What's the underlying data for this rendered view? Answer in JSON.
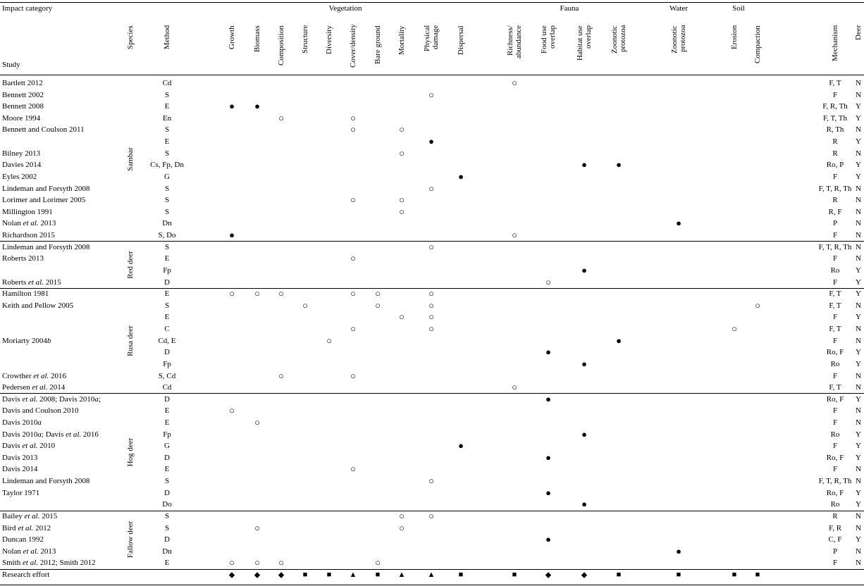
{
  "header": {
    "impact_category": "Impact category",
    "groups": [
      "Vegetation",
      "Fauna",
      "Water",
      "Soil"
    ],
    "study": "Study",
    "species": "Species",
    "method": "Method",
    "impacts": [
      "Growth",
      "Biomass",
      "Composition",
      "Structure",
      "Diversity",
      "Cover/density",
      "Bare ground",
      "Mortality",
      "Physical damage",
      "Dispersal",
      "Richness/ abundance",
      "Food use overlap",
      "Habitat use overlap",
      "Zoonotic protozoa",
      "Zoonotic protozoa",
      "Erosion",
      "Compaction"
    ],
    "mechanism": "Mechanism",
    "deer": "Deer"
  },
  "groups": [
    {
      "species": "Sambar",
      "rows": [
        {
          "study": "Bartlett 2012",
          "method": "Cd",
          "marks": {
            "10": "○"
          },
          "mechanism": "F, T",
          "deer": "N"
        },
        {
          "study": "Bennett 2002",
          "method": "S",
          "marks": {
            "8": "○"
          },
          "mechanism": "F",
          "deer": "N"
        },
        {
          "study": "Bennett 2008",
          "method": "E",
          "marks": {
            "0": "●",
            "1": "●"
          },
          "mechanism": "F, R, Th",
          "deer": "Y"
        },
        {
          "study": "Moore 1994",
          "method": "En",
          "marks": {
            "2": "○",
            "5": "○"
          },
          "mechanism": "F, T, Th",
          "deer": "Y"
        },
        {
          "study": "Bennett and Coulson 2011",
          "method": "S",
          "marks": {
            "5": "○",
            "7": "○"
          },
          "mechanism": "R, Th",
          "deer": "N"
        },
        {
          "study": null,
          "method": "E",
          "marks": {
            "8": "●"
          },
          "mechanism": "R",
          "deer": "Y"
        },
        {
          "study": "Bilney 2013",
          "method": "S",
          "marks": {
            "7": "○"
          },
          "mechanism": "R",
          "deer": "N"
        },
        {
          "study": "Davies 2014",
          "method": "Cs, Fp, Dn",
          "marks": {
            "12": "●",
            "13": "●"
          },
          "mechanism": "Ro, P",
          "deer": "Y"
        },
        {
          "study": "Eyles 2002",
          "method": "G",
          "marks": {
            "9": "●"
          },
          "mechanism": "F",
          "deer": "Y"
        },
        {
          "study": "Lindeman and Forsyth 2008",
          "method": "S",
          "marks": {
            "8": "○"
          },
          "mechanism": "F, T, R, Th",
          "deer": "N"
        },
        {
          "study": "Lorimer and Lorimer 2005",
          "method": "S",
          "marks": {
            "5": "○",
            "7": "○"
          },
          "mechanism": "R",
          "deer": "N"
        },
        {
          "study": "Millington 1991",
          "method": "S",
          "marks": {
            "7": "○"
          },
          "mechanism": "R, F",
          "deer": "N"
        },
        {
          "study": "Nolan et al. 2013",
          "method": "Dn",
          "marks": {
            "14": "●"
          },
          "mechanism": "P",
          "deer": "N"
        },
        {
          "study": "Richardson 2015",
          "method": "S, Do",
          "marks": {
            "0": "●",
            "10": "○"
          },
          "mechanism": "F",
          "deer": "N"
        }
      ]
    },
    {
      "species": "Red deer",
      "rows": [
        {
          "study": "Lindeman and Forsyth 2008",
          "method": "S",
          "marks": {
            "8": "○"
          },
          "mechanism": "F, T, R, Th",
          "deer": "N"
        },
        {
          "study": "Roberts 2013",
          "method": "E",
          "marks": {
            "5": "○"
          },
          "mechanism": "F",
          "deer": "N"
        },
        {
          "study": null,
          "method": "Fp",
          "marks": {
            "12": "●"
          },
          "mechanism": "Ro",
          "deer": "Y"
        },
        {
          "study": "Roberts et al. 2015",
          "method": "D",
          "marks": {
            "11": "○"
          },
          "mechanism": "F",
          "deer": "Y"
        }
      ]
    },
    {
      "species": "Rusa deer",
      "rows": [
        {
          "study": "Hamilton 1981",
          "method": "E",
          "marks": {
            "0": "○",
            "1": "○",
            "2": "○",
            "5": "○",
            "6": "○",
            "8": "○"
          },
          "mechanism": "F, T",
          "deer": "Y"
        },
        {
          "study": "Keith and Pellow 2005",
          "method": "S",
          "marks": {
            "3": "○",
            "6": "○",
            "8": "○",
            "16": "○"
          },
          "mechanism": "F, T",
          "deer": "N"
        },
        {
          "study": null,
          "method": "E",
          "marks": {
            "7": "○",
            "8": "○"
          },
          "mechanism": "F",
          "deer": "Y"
        },
        {
          "study": null,
          "method": "C",
          "marks": {
            "5": "○",
            "8": "○",
            "15": "○"
          },
          "mechanism": "F, T",
          "deer": "N"
        },
        {
          "study": "Moriarty 2004b",
          "method": "Cd, E",
          "marks": {
            "4": "○",
            "13": "●"
          },
          "mechanism": "F",
          "deer": "N"
        },
        {
          "study": null,
          "method": "D",
          "marks": {
            "11": "●"
          },
          "mechanism": "Ro, F",
          "deer": "Y"
        },
        {
          "study": null,
          "method": "Fp",
          "marks": {
            "12": "●"
          },
          "mechanism": "Ro",
          "deer": "Y"
        },
        {
          "study": "Crowther et al. 2016",
          "method": "S, Cd",
          "marks": {
            "2": "○",
            "5": "○"
          },
          "mechanism": "F",
          "deer": "N"
        },
        {
          "study": "Pedersen et al. 2014",
          "method": "Cd",
          "marks": {
            "10": "○"
          },
          "mechanism": "F, T",
          "deer": "N"
        }
      ]
    },
    {
      "species": "Hog deer",
      "rows": [
        {
          "study": "Davis et al. 2008; Davis 2010a;",
          "method": "D",
          "marks": {
            "11": "●"
          },
          "mechanism": "Ro, F",
          "deer": "Y"
        },
        {
          "study": "Davis and Coulson 2010",
          "method": "E",
          "marks": {
            "0": "○"
          },
          "mechanism": "F",
          "deer": "N"
        },
        {
          "study": "Davis 2010a",
          "method": "E",
          "marks": {
            "1": "○"
          },
          "mechanism": "F",
          "deer": "N"
        },
        {
          "study": "Davis 2010a; Davis et al. 2016",
          "method": "Fp",
          "marks": {
            "12": "●"
          },
          "mechanism": "Ro",
          "deer": "Y"
        },
        {
          "study": "Davis et al. 2010",
          "method": "G",
          "marks": {
            "9": "●"
          },
          "mechanism": "F",
          "deer": "Y"
        },
        {
          "study": "Davis 2013",
          "method": "D",
          "marks": {
            "11": "●"
          },
          "mechanism": "Ro, F",
          "deer": "Y"
        },
        {
          "study": "Davis 2014",
          "method": "E",
          "marks": {
            "5": "○"
          },
          "mechanism": "F",
          "deer": "N"
        },
        {
          "study": "Lindeman and Forsyth 2008",
          "method": "S",
          "marks": {
            "8": "○"
          },
          "mechanism": "F, T, R, Th",
          "deer": "N"
        },
        {
          "study": "Taylor 1971",
          "method": "D",
          "marks": {
            "11": "●"
          },
          "mechanism": "Ro, F",
          "deer": "Y"
        },
        {
          "study": null,
          "method": "Do",
          "marks": {
            "12": "●"
          },
          "mechanism": "Ro",
          "deer": "Y"
        }
      ]
    },
    {
      "species": "Fallow deer",
      "rows": [
        {
          "study": "Bailey et al. 2015",
          "method": "S",
          "marks": {
            "7": "○",
            "8": "○"
          },
          "mechanism": "R",
          "deer": "N"
        },
        {
          "study": "Bird et al. 2012",
          "method": "S",
          "marks": {
            "1": "○",
            "7": "○"
          },
          "mechanism": "F, R",
          "deer": "N"
        },
        {
          "study": "Duncan 1992",
          "method": "D",
          "marks": {
            "11": "●"
          },
          "mechanism": "C, F",
          "deer": "Y"
        },
        {
          "study": "Nolan et al. 2013",
          "method": "Dn",
          "marks": {
            "14": "●"
          },
          "mechanism": "P",
          "deer": "N"
        },
        {
          "study": "Smith et al. 2012; Smith 2012",
          "method": "E",
          "marks": {
            "0": "○",
            "1": "○",
            "2": "○",
            "6": "○"
          },
          "mechanism": "F",
          "deer": "N"
        }
      ]
    }
  ],
  "research_effort": {
    "label": "Research effort",
    "marks": [
      "◆",
      "◆",
      "◆",
      "■",
      "■",
      "▲",
      "■",
      "▲",
      "▲",
      "■",
      "■",
      "◆",
      "◆",
      "■",
      "■",
      "■",
      "■"
    ]
  }
}
